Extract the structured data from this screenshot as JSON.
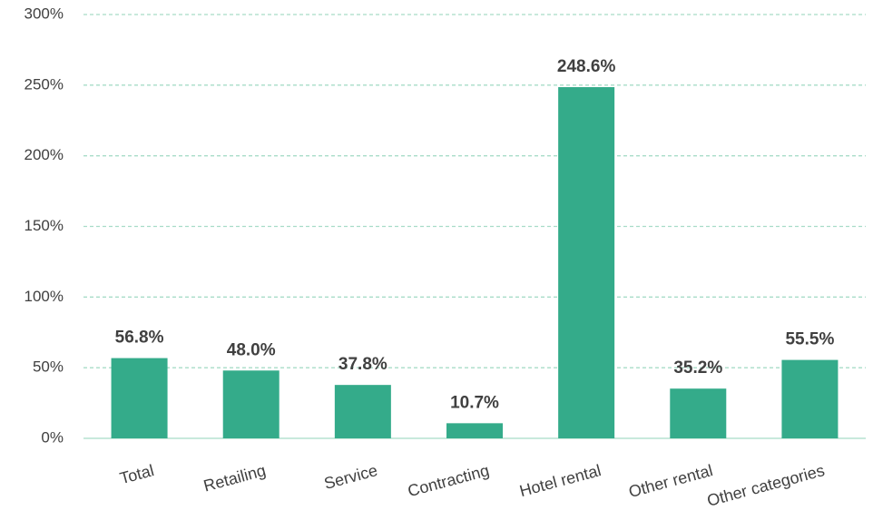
{
  "chart_data": {
    "type": "bar",
    "categories": [
      "Total",
      "Retailing",
      "Service",
      "Contracting",
      "Hotel rental",
      "Other rental",
      "Other categories"
    ],
    "values": [
      56.8,
      48.0,
      37.8,
      10.7,
      248.6,
      35.2,
      55.5
    ],
    "value_labels": [
      "56.8%",
      "48.0%",
      "37.8%",
      "10.7%",
      "248.6%",
      "35.2%",
      "55.5%"
    ],
    "color": "#34ab8a",
    "ylim": [
      0,
      300
    ],
    "yticks": [
      {
        "value": 0,
        "label": "0%"
      },
      {
        "value": 50,
        "label": "50%"
      },
      {
        "value": 100,
        "label": "100%"
      },
      {
        "value": 150,
        "label": "150%"
      },
      {
        "value": 200,
        "label": "200%"
      },
      {
        "value": 250,
        "label": "250%"
      },
      {
        "value": 300,
        "label": "300%"
      }
    ],
    "grid": true
  }
}
